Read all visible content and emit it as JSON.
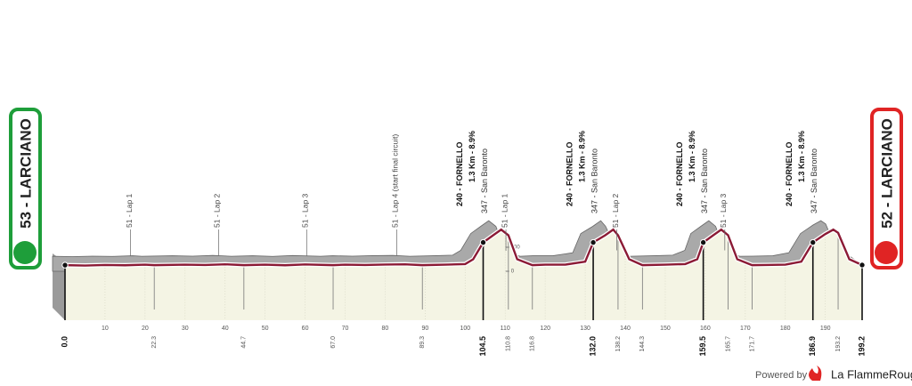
{
  "start": {
    "label": "53 - LARCIANO"
  },
  "finish": {
    "label": "52 - LARCIANO"
  },
  "footer": {
    "powered": "Powered by",
    "brand": "La FlammeRouge"
  },
  "chart_data": {
    "type": "area",
    "x": [
      0,
      5,
      10,
      15,
      20,
      22.3,
      30,
      35,
      40,
      44.7,
      50,
      55,
      60,
      67,
      70,
      75,
      80,
      85,
      89.3,
      95,
      100,
      102,
      104.5,
      107,
      109,
      110.8,
      113,
      116.8,
      120,
      125,
      130,
      132,
      135,
      137,
      138.2,
      141,
      144.3,
      150,
      155,
      158,
      159.5,
      162,
      164,
      165.7,
      168,
      171.7,
      175,
      180,
      184,
      186.9,
      190,
      192,
      193.2,
      196,
      199.2
    ],
    "values": [
      51,
      48,
      52,
      50,
      55,
      51,
      55,
      52,
      58,
      51,
      55,
      50,
      57,
      51,
      55,
      52,
      56,
      58,
      51,
      55,
      60,
      100,
      240,
      300,
      347,
      300,
      100,
      51,
      55,
      55,
      80,
      240,
      300,
      347,
      300,
      100,
      51,
      55,
      60,
      100,
      240,
      300,
      347,
      300,
      100,
      51,
      52,
      55,
      80,
      240,
      310,
      347,
      320,
      100,
      52
    ],
    "color": "#8b1a35",
    "shadow_color": "#a9a9a9",
    "fill_color": "#f4f4e4",
    "xlim": [
      0,
      199.2
    ],
    "xticks": [
      10,
      20,
      30,
      40,
      50,
      60,
      70,
      80,
      90,
      100,
      110,
      120,
      130,
      140,
      150,
      160,
      170,
      180,
      190
    ],
    "ylim": [
      0,
      400
    ],
    "yticks": [
      0,
      200
    ],
    "key_marks": [
      {
        "value": 0,
        "label": "0.0"
      },
      104.5,
      {
        "value": 132,
        "label": "132.0"
      },
      159.5,
      186.9,
      199.2
    ],
    "distance_marks": [
      22.3,
      44.7,
      {
        "value": 67,
        "label": "67.0"
      },
      89.3,
      110.8,
      116.8,
      138.2,
      144.3,
      165.7,
      171.7,
      193.2
    ],
    "annotations": [
      {
        "km": 19.5,
        "lines": [
          "51 - Lap 1"
        ]
      },
      {
        "km": 41.5,
        "lines": [
          "51 - Lap 2"
        ]
      },
      {
        "km": 63.5,
        "lines": [
          "51 - Lap 3"
        ]
      },
      {
        "km": 86,
        "lines": [
          "51 - Lap 4 (start final circuit)"
        ]
      },
      {
        "km": 104.5,
        "lines": [
          "240 - FORNELLO",
          "1.3 Km - 8.9%",
          "347 - San Baronto"
        ]
      },
      {
        "km": 113.3,
        "lines": [
          "51 - Lap 1"
        ]
      },
      {
        "km": 132,
        "lines": [
          "240 - FORNELLO",
          "1.3 Km - 8.9%",
          "347 - San Baronto"
        ]
      },
      {
        "km": 141,
        "lines": [
          "51 - Lap 2"
        ]
      },
      {
        "km": 159.5,
        "lines": [
          "240 - FORNELLO",
          "1.3 Km - 8.9%",
          "347 - San Baronto"
        ]
      },
      {
        "km": 168,
        "lines": [
          "51 - Lap 3"
        ]
      },
      {
        "km": 186.9,
        "lines": [
          "240 - FORNELLO",
          "1.3 Km - 8.9%",
          "347 - San Baronto"
        ]
      }
    ]
  }
}
